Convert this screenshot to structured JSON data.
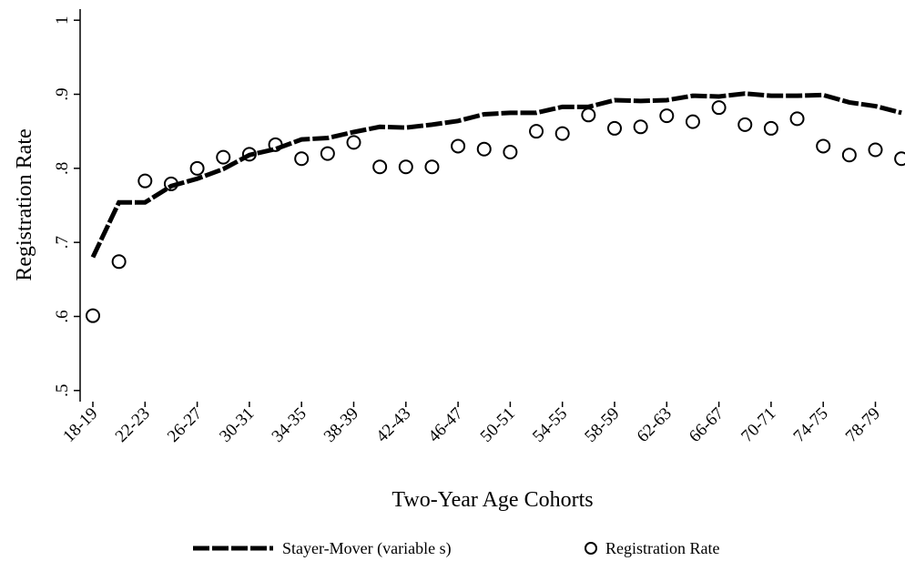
{
  "chart_data": {
    "type": "line",
    "x_label": "Two-Year Age Cohorts",
    "y_label": "Registration Rate",
    "categories": [
      "18-19",
      null,
      "22-23",
      null,
      "26-27",
      null,
      "30-31",
      null,
      "34-35",
      null,
      "38-39",
      null,
      "42-43",
      null,
      "46-47",
      null,
      "50-51",
      null,
      "54-55",
      null,
      "58-59",
      null,
      "62-63",
      null,
      "66-67",
      null,
      "70-71",
      null,
      "74-75",
      null,
      "78-79",
      null
    ],
    "series": [
      {
        "name": "Stayer-Mover (variable s)",
        "type": "line",
        "color": "#000000",
        "dashed": true,
        "values": [
          0.68,
          0.754,
          0.754,
          0.776,
          0.786,
          0.799,
          0.818,
          0.826,
          0.839,
          0.841,
          0.849,
          0.856,
          0.855,
          0.859,
          0.864,
          0.873,
          0.875,
          0.875,
          0.883,
          0.883,
          0.892,
          0.891,
          0.892,
          0.898,
          0.897,
          0.901,
          0.898,
          0.898,
          0.899,
          0.889,
          0.884,
          0.875
        ]
      },
      {
        "name": "Registration Rate",
        "type": "scatter",
        "color": "#000000",
        "values": [
          0.601,
          0.674,
          0.783,
          0.779,
          0.8,
          0.815,
          0.819,
          0.832,
          0.813,
          0.82,
          0.835,
          0.802,
          0.802,
          0.802,
          0.83,
          0.826,
          0.822,
          0.85,
          0.847,
          0.872,
          0.854,
          0.856,
          0.871,
          0.863,
          0.882,
          0.859,
          0.854,
          0.867,
          0.83,
          0.818,
          0.825,
          0.813
        ]
      }
    ],
    "ylim": [
      0.485,
      1.015
    ],
    "yticks": [
      {
        "value": 0.5,
        "label": ".5"
      },
      {
        "value": 0.6,
        "label": ".6"
      },
      {
        "value": 0.7,
        "label": ".7"
      },
      {
        "value": 0.8,
        "label": ".8"
      },
      {
        "value": 0.9,
        "label": ".9"
      },
      1
    ],
    "grid": false,
    "legend": "bottom"
  }
}
